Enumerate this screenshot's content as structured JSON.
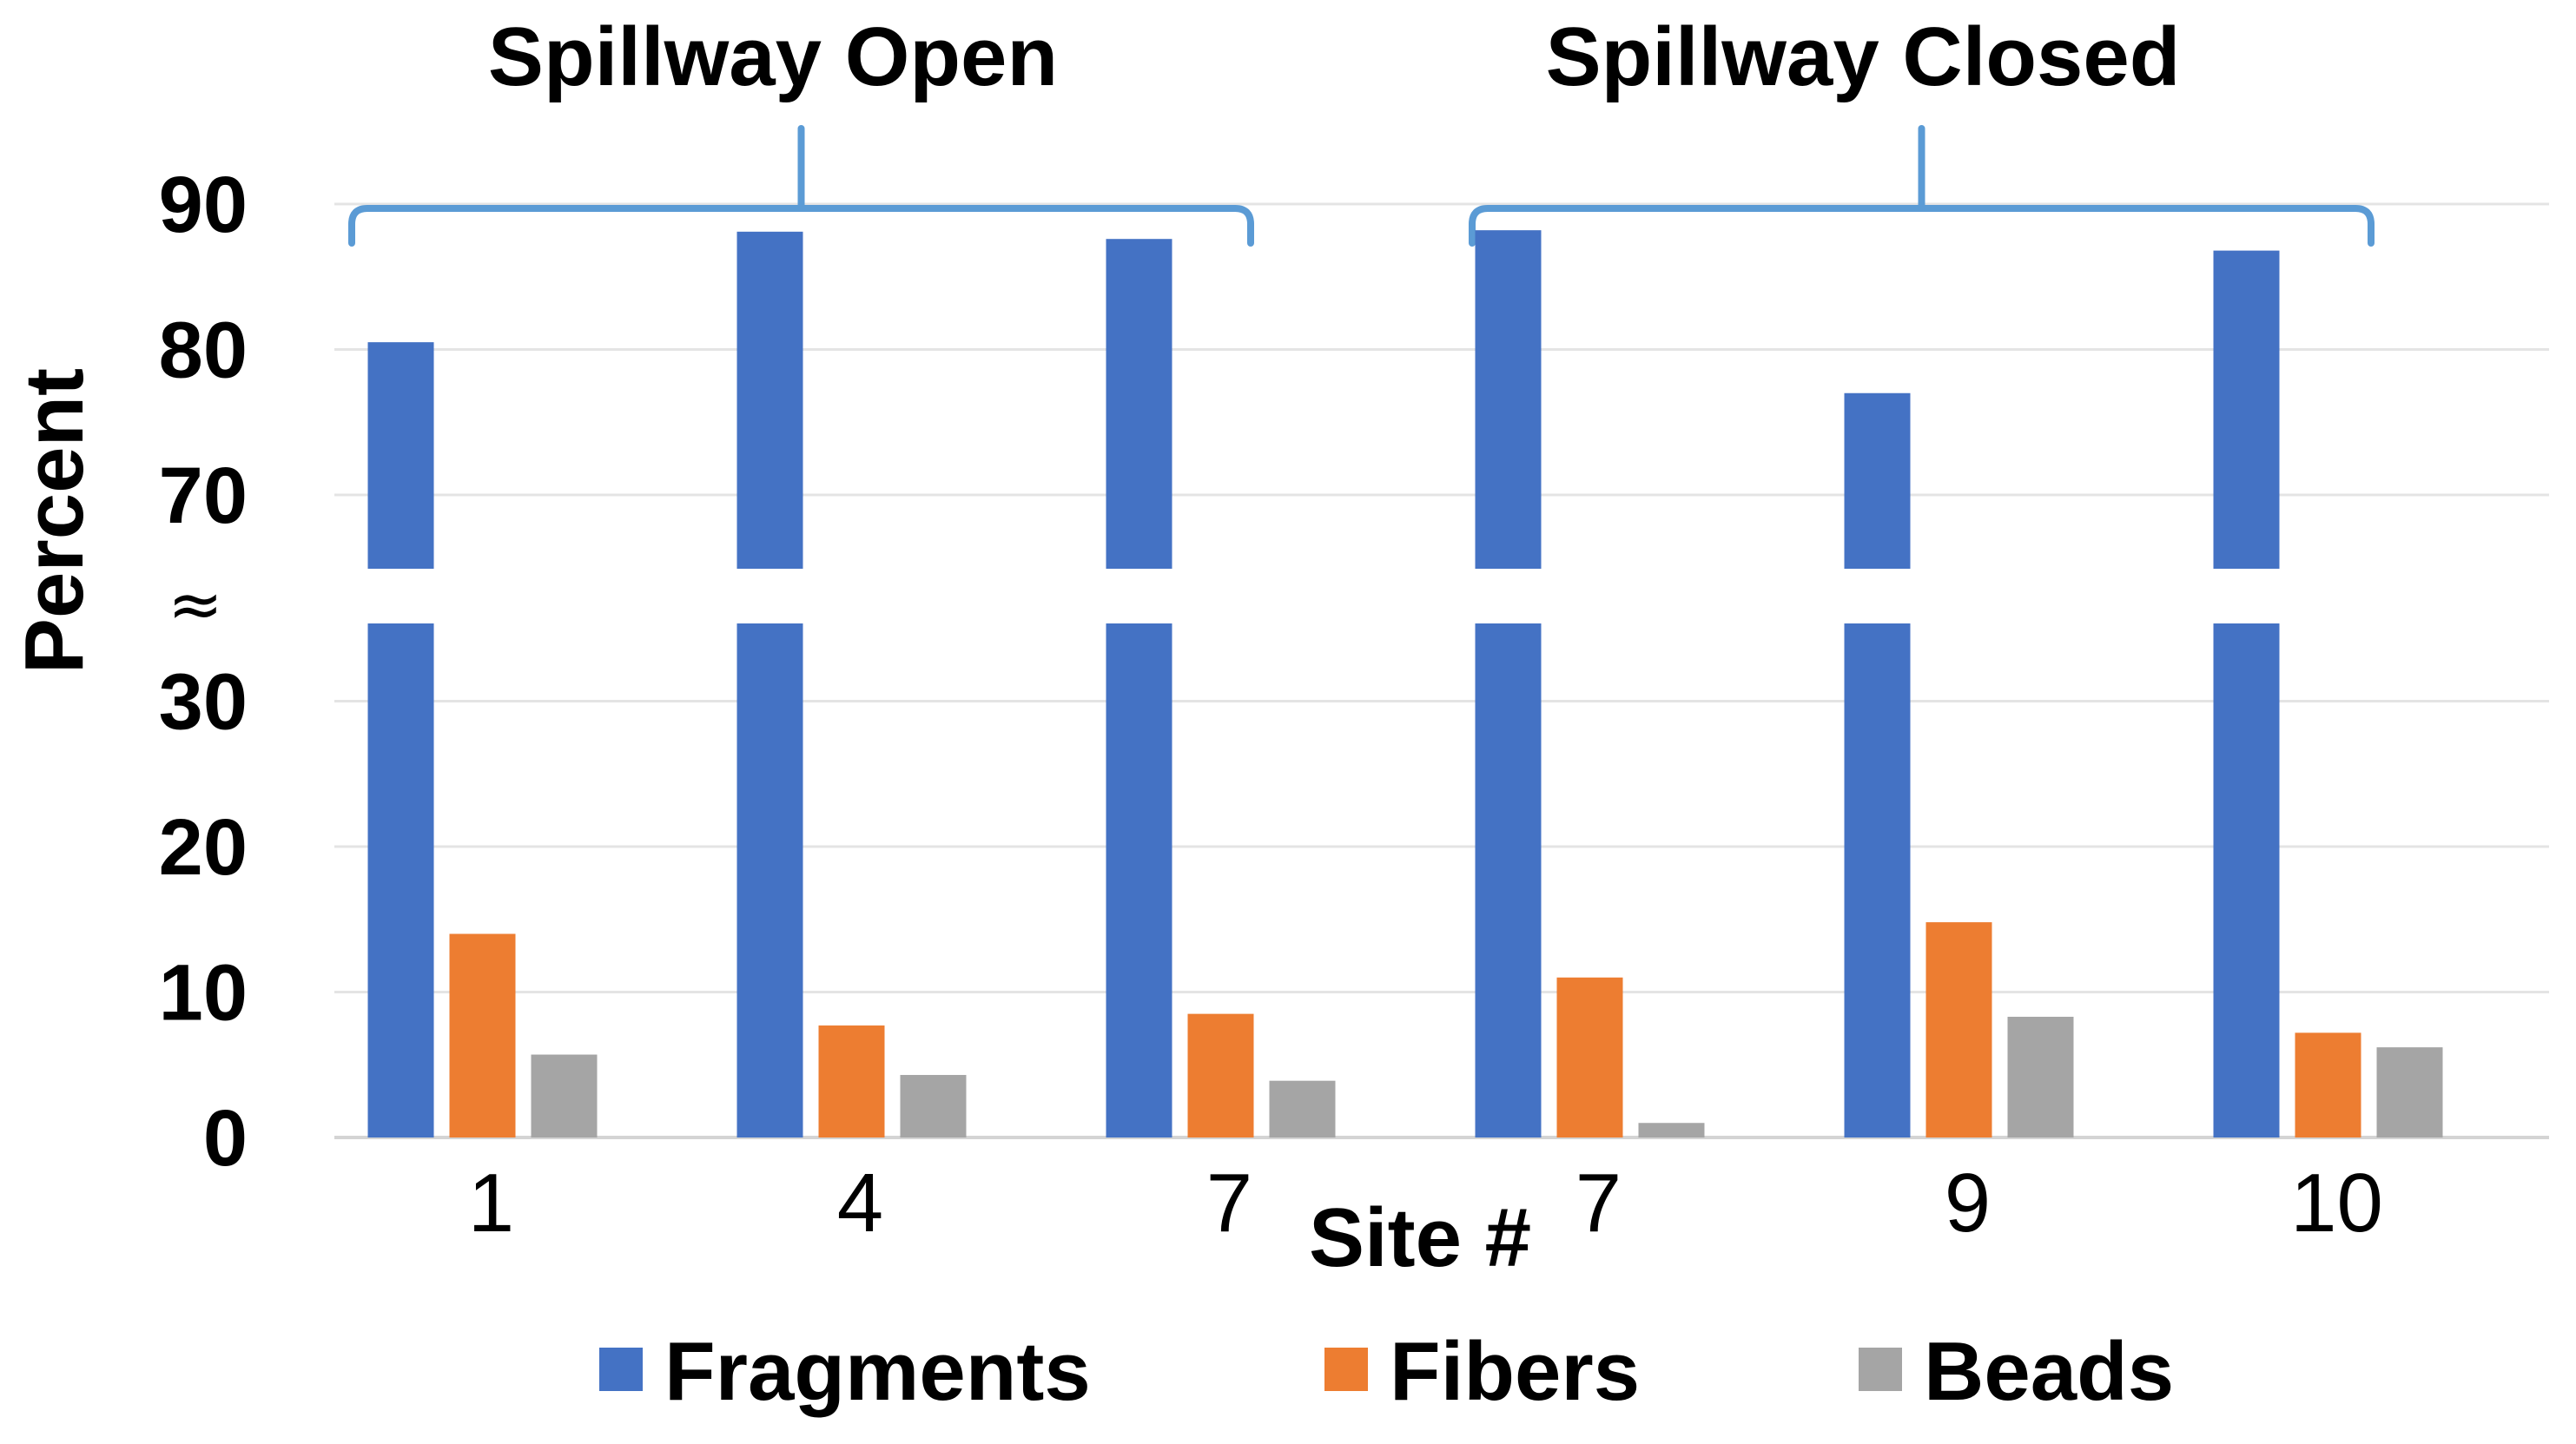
{
  "chart_data": {
    "type": "bar",
    "categories": [
      "1",
      "4",
      "7",
      "7",
      "9",
      "10"
    ],
    "series": [
      {
        "name": "Fragments",
        "color": "#4472c4",
        "values": [
          80.5,
          88.1,
          87.6,
          88.2,
          77.0,
          86.8
        ]
      },
      {
        "name": "Fibers",
        "color": "#ed7d31",
        "values": [
          14.0,
          7.7,
          8.5,
          11.0,
          14.8,
          7.2
        ]
      },
      {
        "name": "Beads",
        "color": "#a5a5a5",
        "values": [
          5.7,
          4.3,
          3.9,
          1.0,
          8.3,
          6.2
        ]
      }
    ],
    "groups": [
      {
        "label": "Spillway Open",
        "categories": [
          "1",
          "4",
          "7"
        ]
      },
      {
        "label": "Spillway Closed",
        "categories": [
          "7",
          "9",
          "10"
        ]
      }
    ],
    "xlabel": "Site #",
    "ylabel": "Percent",
    "y_ticks_lower": [
      "0",
      "10",
      "20",
      "30"
    ],
    "y_ticks_upper": [
      "70",
      "80",
      "90"
    ],
    "axis_break": {
      "symbol": "≈",
      "from": 35,
      "to": 65
    },
    "ylim": [
      0,
      90
    ],
    "grid": true,
    "legend_position": "bottom"
  }
}
